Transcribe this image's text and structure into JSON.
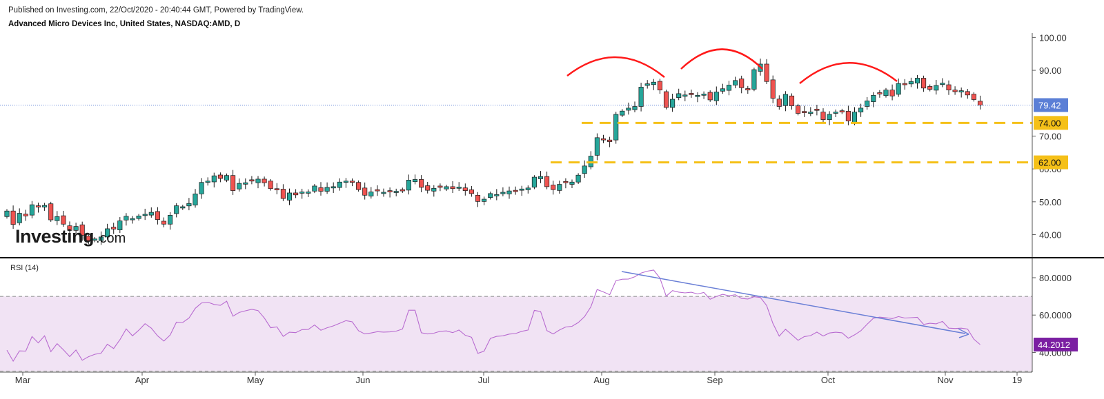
{
  "header": {
    "published": "Published on Investing.com, 22/Oct/2020 - 20:40:44 GMT, Powered by TradingView.",
    "instrument": "Advanced Micro Devices Inc, United States, NASDAQ:AMD, D"
  },
  "watermark": {
    "brand": "Investing",
    "suffix": ".com"
  },
  "colors": {
    "up": "#26a69a",
    "down": "#ef5350",
    "arc": "#ff1a1a",
    "support": "#f5c018",
    "rsi_line": "#b86bd0",
    "rsi_band": "#f1e3f4",
    "trend": "#6a7fd6",
    "last_price": "#5b7fd6",
    "rsi_tag": "#7b1fa2"
  },
  "chart_data": [
    {
      "type": "candlestick",
      "title": "Advanced Micro Devices Inc, United States, NASDAQ:AMD, D",
      "x_ticks": [
        "Mar",
        "Apr",
        "May",
        "Jun",
        "Jul",
        "Aug",
        "Sep",
        "Oct",
        "Nov",
        "19"
      ],
      "y_ticks": [
        "40.00",
        "50.00",
        "60.00",
        "70.00",
        "90.00",
        "100.00"
      ],
      "ylim": [
        34.4,
        102.2
      ],
      "last_price": 79.42,
      "last_price_label": "79.42",
      "support_levels": [
        {
          "value": 74.0,
          "label": "74.00"
        },
        {
          "value": 62.0,
          "label": "62.00"
        }
      ],
      "closes": [
        47.2,
        43.1,
        46.5,
        45.7,
        49.1,
        48.4,
        48.9,
        44.5,
        45.5,
        43.2,
        41.3,
        42.5,
        39.8,
        38.2,
        38.7,
        39.3,
        41.8,
        41.7,
        44.2,
        45.6,
        44.9,
        45.7,
        46.2,
        46.8,
        44.6,
        43.2,
        45.9,
        48.8,
        48.5,
        49.5,
        52.4,
        55.9,
        56.3,
        57.9,
        57.1,
        58.0,
        53.4,
        55.6,
        55.8,
        56.3,
        56.9,
        55.8,
        54.0,
        53.6,
        51.0,
        52.7,
        52.1,
        53.0,
        53.0,
        54.8,
        53.2,
        54.4,
        54.6,
        56.0,
        56.3,
        55.9,
        53.7,
        52.0,
        53.0,
        53.3,
        52.9,
        53.0,
        53.2,
        53.3,
        56.6,
        56.8,
        54.4,
        53.5,
        54.1,
        54.4,
        54.6,
        54.0,
        54.5,
        53.4,
        52.5,
        50.1,
        50.8,
        52.5,
        52.2,
        52.9,
        53.3,
        53.1,
        53.9,
        54.2,
        57.5,
        57.7,
        54.6,
        53.7,
        55.3,
        55.8,
        56.0,
        58.1,
        60.9,
        63.9,
        69.5,
        68.8,
        68.3,
        76.6,
        77.6,
        78.5,
        79.0,
        84.9,
        85.9,
        86.4,
        84.0,
        78.7,
        81.2,
        82.9,
        82.5,
        82.6,
        82.4,
        82.8,
        81.0,
        83.4,
        84.4,
        85.5,
        86.9,
        84.7,
        84.0,
        90.2,
        91.9,
        86.6,
        81.5,
        79.0,
        82.7,
        79.2,
        76.9,
        77.1,
        77.3,
        77.8,
        75.0,
        76.6,
        77.3,
        77.3,
        74.6,
        77.3,
        78.5,
        80.7,
        82.4,
        82.8,
        84.0,
        82.2,
        86.0,
        85.6,
        86.6,
        87.6,
        84.6,
        84.2,
        85.4,
        86.1,
        84.0,
        83.5,
        83.8,
        82.5,
        81.1,
        79.4
      ]
    },
    {
      "type": "line",
      "title": "RSI (14)",
      "y_ticks": [
        "40.0000",
        "60.0000",
        "80.0000"
      ],
      "ylim": [
        25.2,
        86.8
      ],
      "bands": [
        30,
        70
      ],
      "last_value": 44.2012,
      "last_value_label": "44.2012",
      "values": [
        41.2,
        35.3,
        40.8,
        40.7,
        48.5,
        45.1,
        48.9,
        40.4,
        44.7,
        41.4,
        37.8,
        41.3,
        35.8,
        37.7,
        39.0,
        39.6,
        44.4,
        42.1,
        46.8,
        52.6,
        48.9,
        51.9,
        55.4,
        53.0,
        48.9,
        46.1,
        49.3,
        56.2,
        56.0,
        58.4,
        63.6,
        66.5,
        66.9,
        65.7,
        65.2,
        67.4,
        59.4,
        61.4,
        62.3,
        63.1,
        62.4,
        58.4,
        53.2,
        53.7,
        48.6,
        50.8,
        50.6,
        52.2,
        52.3,
        54.7,
        51.9,
        53.2,
        54.2,
        55.6,
        57.0,
        56.4,
        51.6,
        49.9,
        50.4,
        51.1,
        50.9,
        51.0,
        51.4,
        52.5,
        62.6,
        62.6,
        50.5,
        49.9,
        50.3,
        51.3,
        51.5,
        50.6,
        52.0,
        49.2,
        48.1,
        39.5,
        40.7,
        47.5,
        48.6,
        48.9,
        49.8,
        50.1,
        51.3,
        52.0,
        62.5,
        61.9,
        51.7,
        49.9,
        52.0,
        53.6,
        54.0,
        56.0,
        59.2,
        64.4,
        73.7,
        72.4,
        70.9,
        78.4,
        79.2,
        79.3,
        80.5,
        82.5,
        83.5,
        84.1,
        79.8,
        70.1,
        73.1,
        72.3,
        71.9,
        72.2,
        71.3,
        72.1,
        68.5,
        70.0,
        71.1,
        70.3,
        70.9,
        68.9,
        68.6,
        69.8,
        69.4,
        65.1,
        55.5,
        48.7,
        52.4,
        49.5,
        46.5,
        48.5,
        49.0,
        50.9,
        48.8,
        50.4,
        50.8,
        50.5,
        47.6,
        49.4,
        51.6,
        55.1,
        58.3,
        58.9,
        58.6,
        58.1,
        59.2,
        58.4,
        58.6,
        58.8,
        55.0,
        55.6,
        55.3,
        56.6,
        53.0,
        52.8,
        53.0,
        52.5,
        47.1,
        44.2
      ]
    }
  ]
}
